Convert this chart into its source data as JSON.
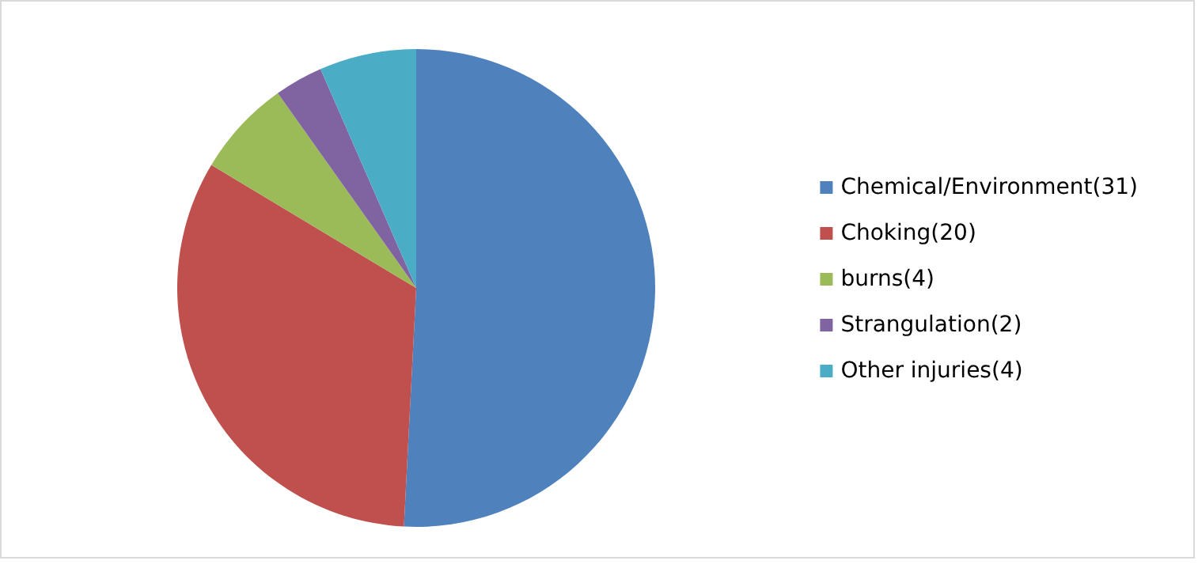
{
  "chart_data": {
    "type": "pie",
    "categories": [
      "Chemical/Environment(31)",
      "Choking(20)",
      "burns(4)",
      "Strangulation(2)",
      "Other injuries(4)"
    ],
    "values": [
      31,
      20,
      4,
      2,
      4
    ],
    "colors": [
      "#4f81bd",
      "#c0504d",
      "#9bbb59",
      "#8064a2",
      "#4bacc6"
    ],
    "legend": "right"
  }
}
